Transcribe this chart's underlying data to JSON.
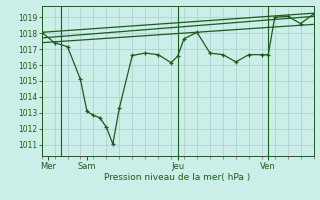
{
  "bg_color": "#cceee8",
  "grid_color": "#aacccc",
  "line_color": "#1a5c1a",
  "title": "Pression niveau de la mer( hPa )",
  "ylabel_ticks": [
    1011,
    1012,
    1013,
    1014,
    1015,
    1016,
    1017,
    1018,
    1019
  ],
  "ylim": [
    1010.3,
    1019.7
  ],
  "xlim": [
    0,
    21
  ],
  "day_positions": [
    0.5,
    3.5,
    10.5,
    17.5
  ],
  "day_labels": [
    "Mer",
    "Sam",
    "Jeu",
    "Ven"
  ],
  "day_vlines_x": [
    1.5,
    10.5,
    17.5
  ],
  "minor_tick_positions": [
    0,
    1,
    2,
    3,
    4,
    5,
    6,
    7,
    8,
    9,
    10,
    11,
    12,
    13,
    14,
    15,
    16,
    17,
    18,
    19,
    20,
    21
  ],
  "line_slowly_rising": {
    "x": [
      0,
      21
    ],
    "y": [
      1018.05,
      1019.25
    ]
  },
  "line_middle": {
    "x": [
      0,
      21
    ],
    "y": [
      1017.7,
      1019.05
    ]
  },
  "line_lower": {
    "x": [
      0,
      21
    ],
    "y": [
      1017.4,
      1018.55
    ]
  },
  "zigzag": {
    "x": [
      0,
      1,
      2,
      3,
      3.5,
      4,
      4.5,
      5,
      5.5,
      6,
      7,
      8,
      9,
      10,
      10.5,
      11,
      12,
      13,
      14,
      15,
      16,
      17,
      17.5,
      18,
      19,
      20,
      21
    ],
    "y": [
      1018.05,
      1017.4,
      1017.15,
      1015.1,
      1013.1,
      1012.85,
      1012.7,
      1012.1,
      1011.05,
      1013.3,
      1016.6,
      1016.75,
      1016.65,
      1016.15,
      1016.55,
      1017.65,
      1018.05,
      1016.75,
      1016.65,
      1016.2,
      1016.65,
      1016.65,
      1016.65,
      1019.0,
      1019.05,
      1018.6,
      1019.2
    ]
  }
}
